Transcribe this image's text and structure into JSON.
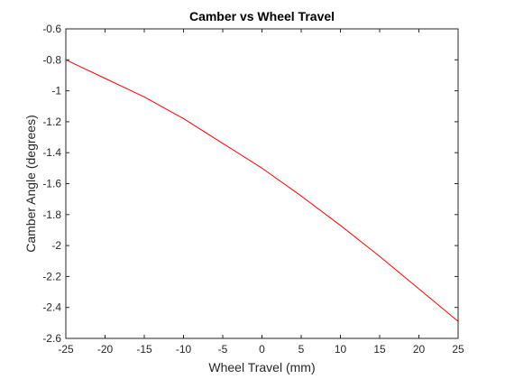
{
  "chart_data": {
    "type": "line",
    "title": "Camber vs Wheel Travel",
    "xlabel": "Wheel Travel (mm)",
    "ylabel": "Camber Angle (degrees)",
    "xlim": [
      -25,
      25
    ],
    "ylim": [
      -2.6,
      -0.6
    ],
    "xticks": [
      -25,
      -20,
      -15,
      -10,
      -5,
      0,
      5,
      10,
      15,
      20,
      25
    ],
    "yticks": [
      -2.6,
      -2.4,
      -2.2,
      -2,
      -1.8,
      -1.6,
      -1.4,
      -1.2,
      -1,
      -0.8,
      -0.6
    ],
    "grid": false,
    "series": [
      {
        "color": "#ff0000",
        "x": [
          -25,
          -20,
          -15,
          -10,
          -5,
          0,
          5,
          10,
          15,
          20,
          25
        ],
        "y": [
          -0.8,
          -0.92,
          -1.04,
          -1.18,
          -1.34,
          -1.5,
          -1.68,
          -1.87,
          -2.07,
          -2.28,
          -2.49
        ]
      }
    ]
  }
}
